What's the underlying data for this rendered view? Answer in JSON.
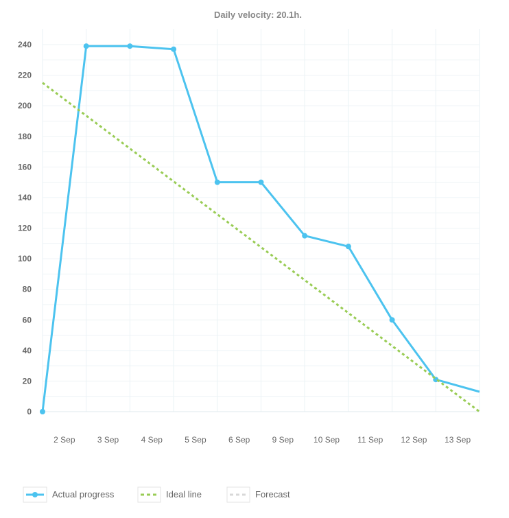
{
  "chart_data": {
    "type": "line",
    "title": "Daily velocity: 20.1h.",
    "categories": [
      "2 Sep",
      "3 Sep",
      "4 Sep",
      "5 Sep",
      "6 Sep",
      "9 Sep",
      "10 Sep",
      "11 Sep",
      "12 Sep",
      "13 Sep"
    ],
    "ylim": [
      0,
      250
    ],
    "yticks": [
      0,
      20,
      40,
      60,
      80,
      100,
      120,
      140,
      160,
      180,
      200,
      220,
      240
    ],
    "grid": true,
    "legend_position": "bottom-left",
    "series": [
      {
        "name": "Actual progress",
        "color": "#4cc3ef",
        "style": "solid",
        "points": [
          [
            0,
            0
          ],
          [
            1,
            239
          ],
          [
            2,
            239
          ],
          [
            3,
            237
          ],
          [
            4,
            150
          ],
          [
            5,
            150
          ],
          [
            6,
            115
          ],
          [
            7,
            108
          ],
          [
            8,
            60
          ],
          [
            9,
            21
          ],
          [
            10,
            13
          ]
        ]
      },
      {
        "name": "Ideal line",
        "color": "#99cc55",
        "style": "dashed",
        "points": [
          [
            0,
            215
          ],
          [
            10,
            0
          ]
        ]
      },
      {
        "name": "Forecast",
        "color": "#d8d8d8",
        "style": "dashed",
        "points": []
      }
    ]
  }
}
